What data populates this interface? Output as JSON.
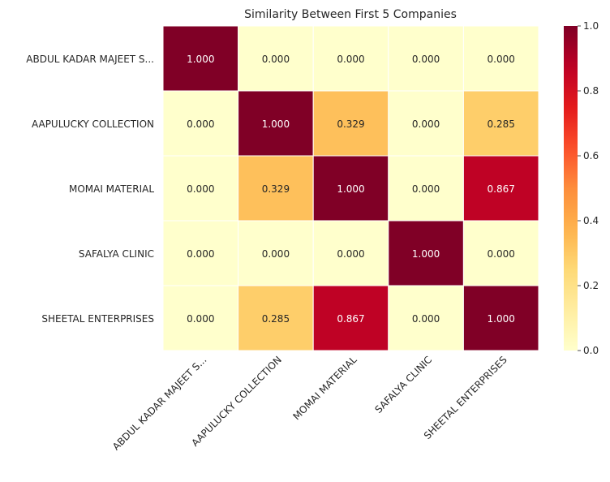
{
  "chart_data": {
    "type": "heatmap",
    "title": "Similarity Between First 5 Companies",
    "xlabel": "",
    "ylabel": "",
    "row_labels": [
      "ABDUL KADAR MAJEET S...",
      "AAPULUCKY COLLECTION",
      "MOMAI MATERIAL",
      "SAFALYA CLINIC",
      "SHEETAL ENTERPRISES"
    ],
    "col_labels": [
      "ABDUL KADAR MAJEET S...",
      "AAPULUCKY COLLECTION",
      "MOMAI MATERIAL",
      "SAFALYA CLINIC",
      "SHEETAL ENTERPRISES"
    ],
    "values": [
      [
        1.0,
        0.0,
        0.0,
        0.0,
        0.0
      ],
      [
        0.0,
        1.0,
        0.329,
        0.0,
        0.285
      ],
      [
        0.0,
        0.329,
        1.0,
        0.0,
        0.867
      ],
      [
        0.0,
        0.0,
        0.0,
        1.0,
        0.0
      ],
      [
        0.0,
        0.285,
        0.867,
        0.0,
        1.0
      ]
    ],
    "value_format": "0.000",
    "colormap": "YlOrRd",
    "colorbar": {
      "range": [
        0,
        1
      ],
      "ticks": [
        0.0,
        0.2,
        0.4,
        0.6,
        0.8,
        1.0
      ],
      "tick_labels": [
        "0.0",
        "0.2",
        "0.4",
        "0.6",
        "0.8",
        "1.0"
      ]
    },
    "colors": {
      "low": "#ffffcc",
      "cell_border": "#ffffff",
      "text": "#262626"
    }
  }
}
